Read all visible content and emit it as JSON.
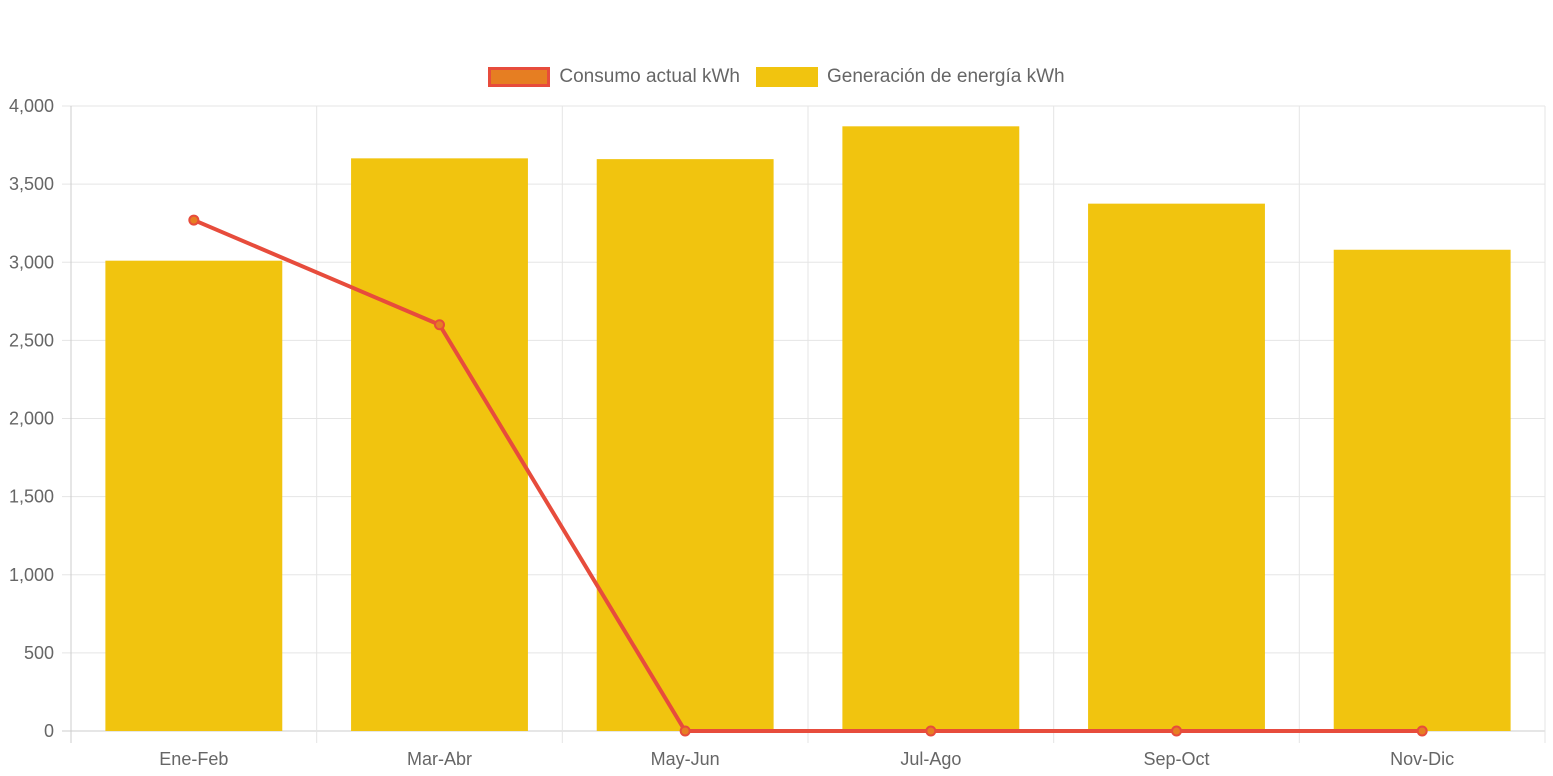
{
  "chart_data": {
    "type": "bar",
    "categories": [
      "Ene-Feb",
      "Mar-Abr",
      "May-Jun",
      "Jul-Ago",
      "Sep-Oct",
      "Nov-Dic"
    ],
    "series": [
      {
        "name": "Consumo actual kWh",
        "type": "line",
        "values": [
          3270,
          2600,
          0,
          0,
          0,
          0
        ],
        "color": "#e74c3c",
        "fill": "#e67e22"
      },
      {
        "name": "Generación de energía kWh",
        "type": "bar",
        "values": [
          3010,
          3665,
          3660,
          3870,
          3375,
          3080
        ],
        "color": "#f1c40f"
      }
    ],
    "ylim": [
      0,
      4000
    ],
    "yticks": [
      "0",
      "500",
      "1,000",
      "1,500",
      "2,000",
      "2,500",
      "3,000",
      "3,500",
      "4,000"
    ],
    "legend": "top-center",
    "grid": true
  }
}
